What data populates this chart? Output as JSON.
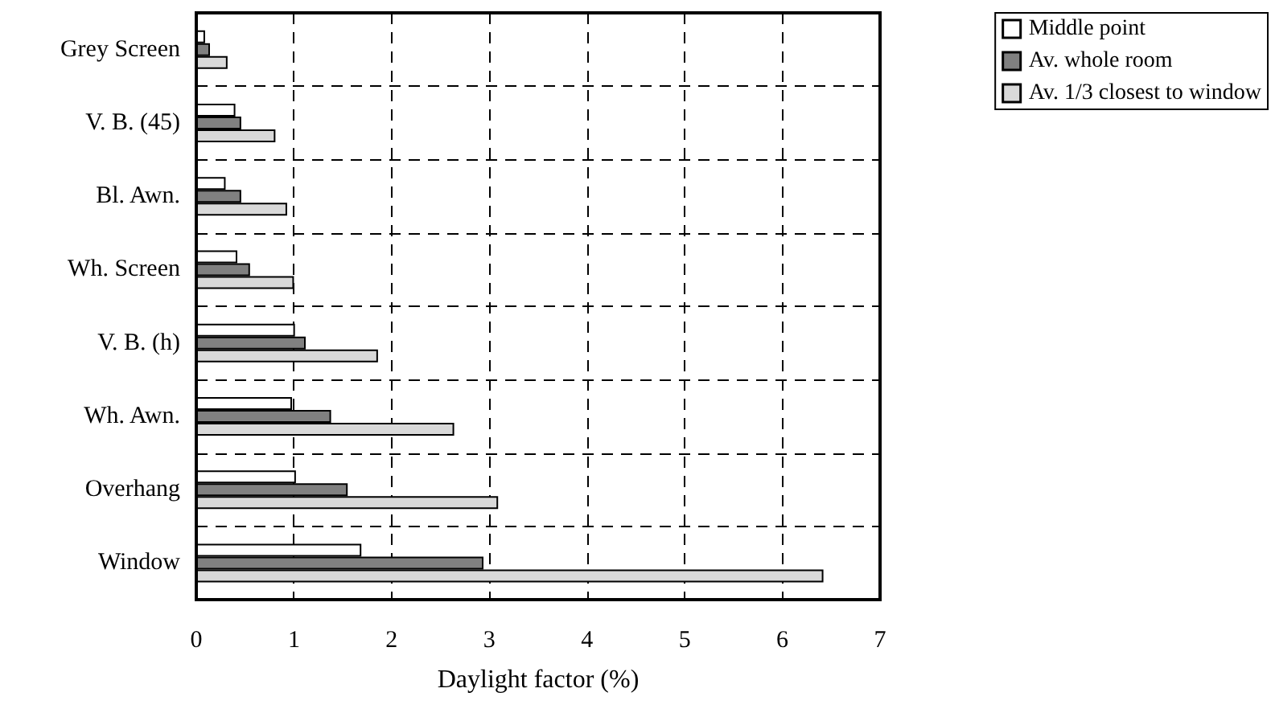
{
  "chart_data": {
    "type": "bar",
    "orientation": "horizontal",
    "xlabel": "Daylight factor (%)",
    "categories": [
      "Grey Screen",
      "V. B. (45)",
      "Bl. Awn.",
      "Wh. Screen",
      "V. B. (h)",
      "Wh. Awn.",
      "Overhang",
      "Window"
    ],
    "series": [
      {
        "name": "Middle point",
        "color": "#ffffff",
        "values": [
          0.09,
          0.4,
          0.3,
          0.42,
          1.01,
          0.98,
          1.02,
          1.69
        ]
      },
      {
        "name": "Av. whole room",
        "color": "#808080",
        "values": [
          0.14,
          0.46,
          0.46,
          0.55,
          1.12,
          1.38,
          1.55,
          2.94
        ]
      },
      {
        "name": "Av. 1/3 closest to window",
        "color": "#d9d9d9",
        "values": [
          0.32,
          0.81,
          0.93,
          1.0,
          1.86,
          2.64,
          3.09,
          6.42
        ]
      }
    ],
    "xlim": [
      0,
      7
    ],
    "xticks": [
      0,
      1,
      2,
      3,
      4,
      5,
      6,
      7
    ],
    "grid": true,
    "legend": "top right"
  }
}
